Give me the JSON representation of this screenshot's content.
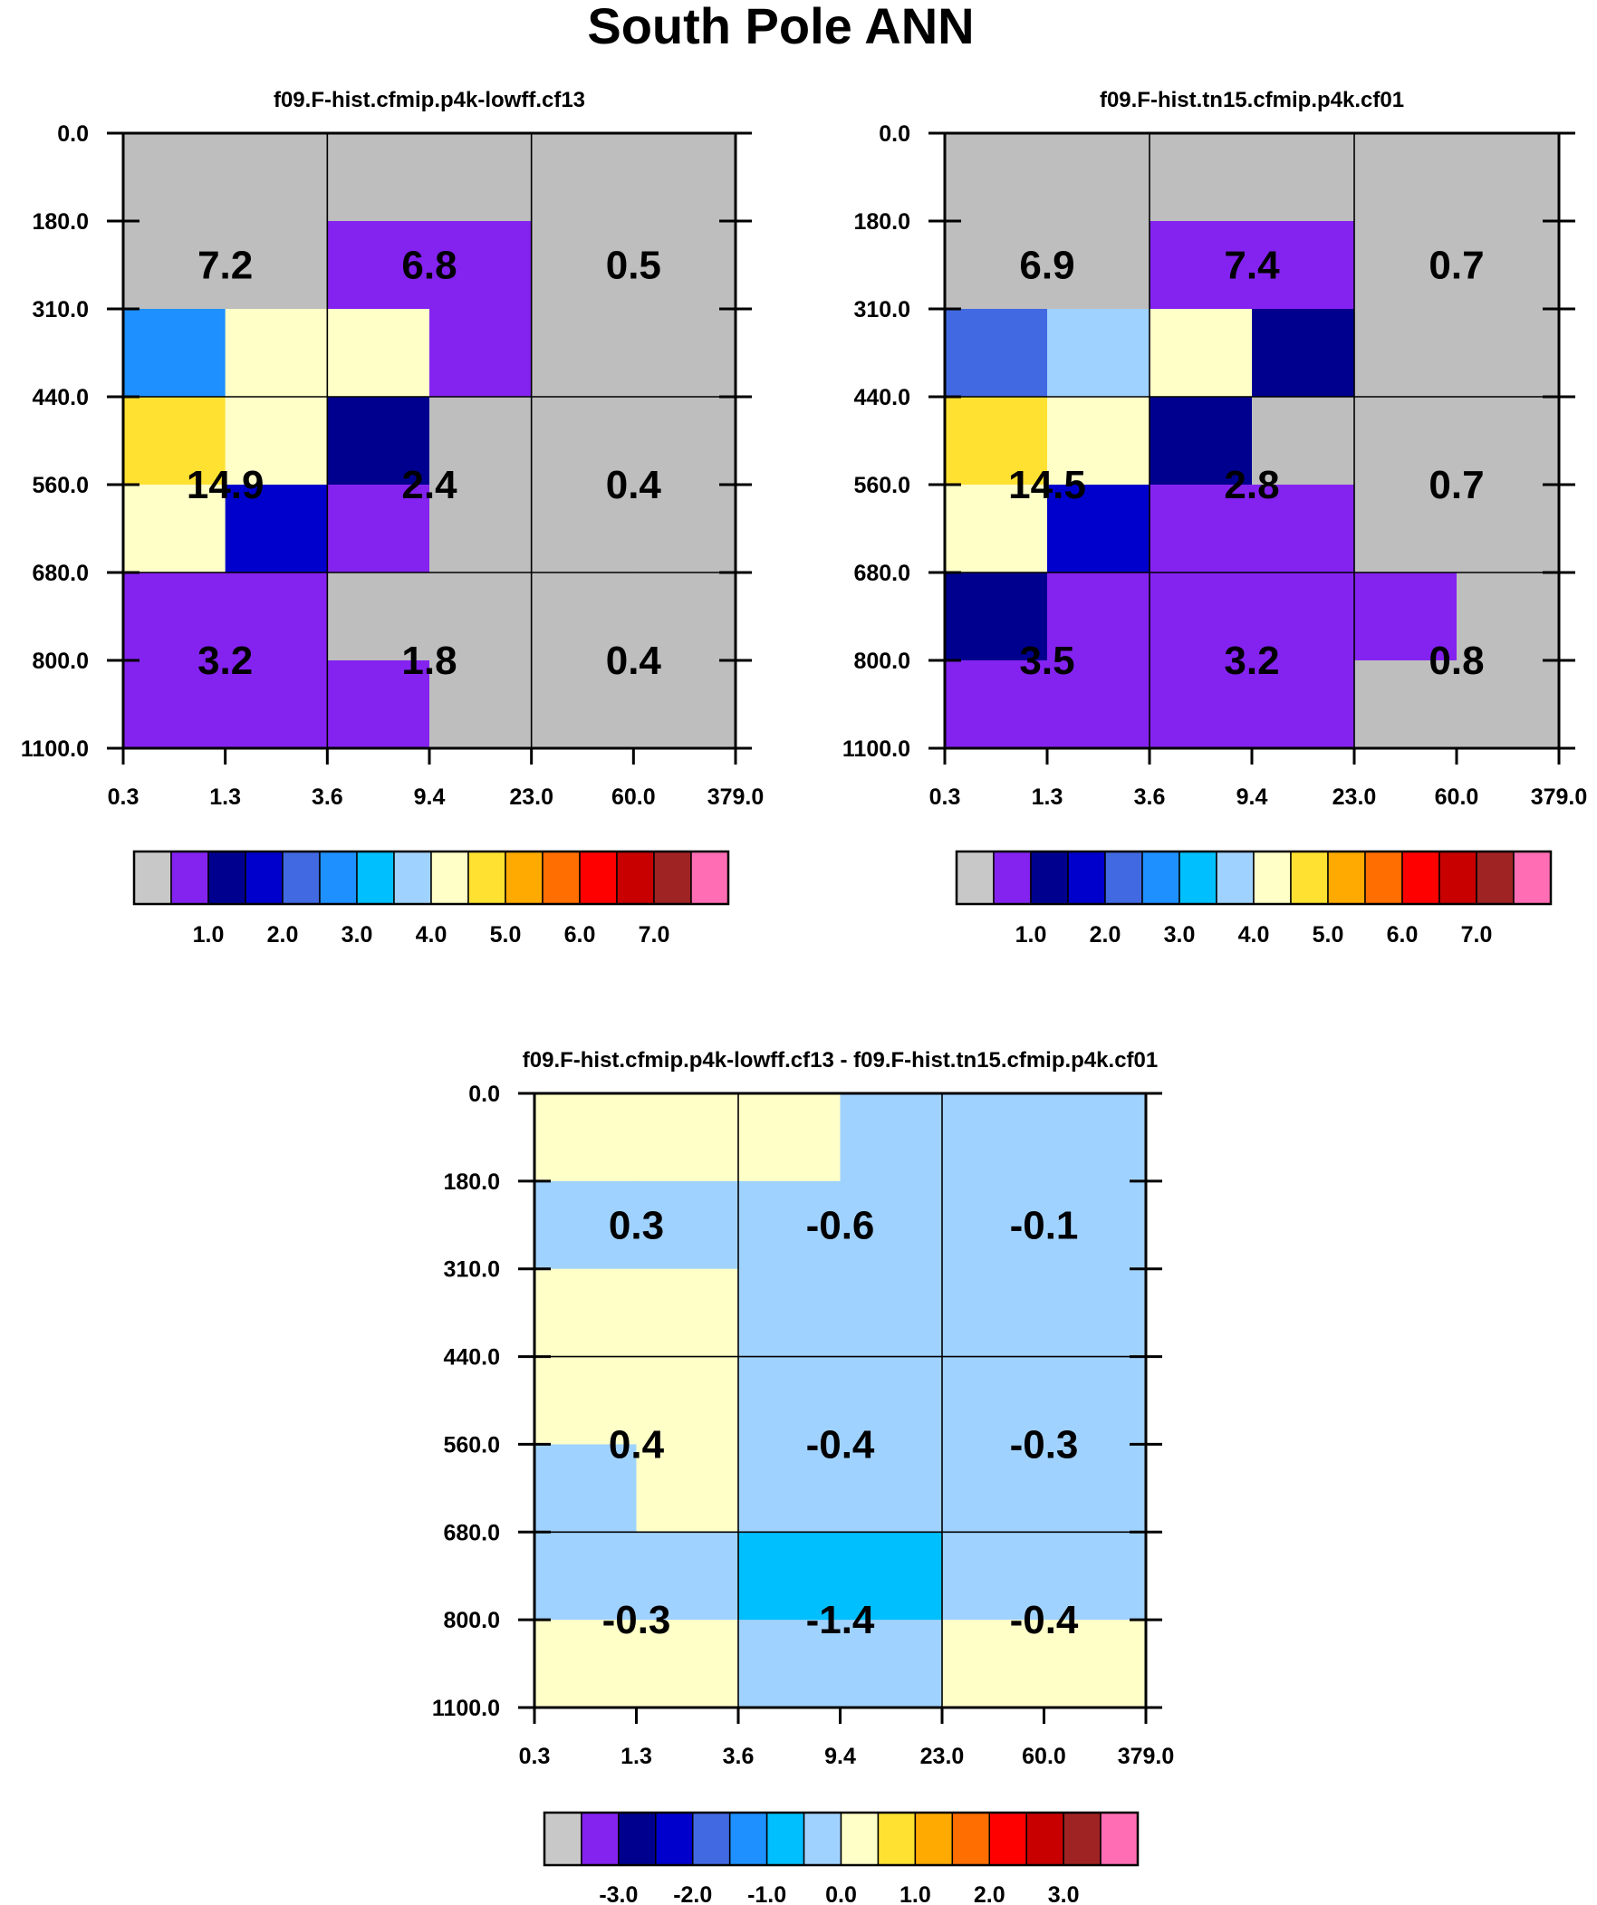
{
  "title": "South Pole ANN",
  "chart_data": [
    {
      "type": "heatmap",
      "title": "f09.F-hist.cfmip.p4k-lowff.cf13",
      "x_ticks": [
        "0.3",
        "1.3",
        "3.6",
        "9.4",
        "23.0",
        "60.0",
        "379.0"
      ],
      "y_ticks": [
        "0.0",
        "180.0",
        "310.0",
        "440.0",
        "560.0",
        "680.0",
        "800.0",
        "1100.0"
      ],
      "cells": [
        [
          "gray",
          "gray",
          "gray",
          "gray",
          "gray",
          "gray"
        ],
        [
          "gray",
          "gray",
          "purple",
          "purple",
          "gray",
          "gray"
        ],
        [
          "dodgerblue",
          "lightyellow",
          "lightyellow",
          "purple",
          "gray",
          "gray"
        ],
        [
          "gold",
          "lightyellow",
          "navy",
          "gray",
          "gray",
          "gray"
        ],
        [
          "lightyellow",
          "mediumblue",
          "purple",
          "gray",
          "gray",
          "gray"
        ],
        [
          "purple",
          "purple",
          "gray",
          "gray",
          "gray",
          "gray"
        ],
        [
          "purple",
          "purple",
          "purple",
          "gray",
          "gray",
          "gray"
        ]
      ],
      "box_values": [
        [
          "7.2",
          "6.8",
          "0.5"
        ],
        [
          "14.9",
          "2.4",
          "0.4"
        ],
        [
          "3.2",
          "1.8",
          "0.4"
        ]
      ],
      "colorbar": {
        "colors": [
          "#c8c8c8",
          "#8423f0",
          "#00008f",
          "#0000cd",
          "#4169e1",
          "#1e90ff",
          "#00bfff",
          "#a0d2ff",
          "#ffffc8",
          "#ffe132",
          "#ffaa00",
          "#ff6e00",
          "#ff0000",
          "#c80000",
          "#a02323",
          "#ff6eb4"
        ],
        "labels": [
          "1.0",
          "2.0",
          "3.0",
          "4.0",
          "5.0",
          "6.0",
          "7.0"
        ]
      }
    },
    {
      "type": "heatmap",
      "title": "f09.F-hist.tn15.cfmip.p4k.cf01",
      "x_ticks": [
        "0.3",
        "1.3",
        "3.6",
        "9.4",
        "23.0",
        "60.0",
        "379.0"
      ],
      "y_ticks": [
        "0.0",
        "180.0",
        "310.0",
        "440.0",
        "560.0",
        "680.0",
        "800.0",
        "1100.0"
      ],
      "cells": [
        [
          "gray",
          "gray",
          "gray",
          "gray",
          "gray",
          "gray"
        ],
        [
          "gray",
          "gray",
          "purple",
          "purple",
          "gray",
          "gray"
        ],
        [
          "royalblue",
          "lightblue",
          "lightyellow",
          "navy",
          "gray",
          "gray"
        ],
        [
          "gold",
          "lightyellow",
          "navy",
          "gray",
          "gray",
          "gray"
        ],
        [
          "lightyellow",
          "mediumblue",
          "purple",
          "purple",
          "gray",
          "gray"
        ],
        [
          "navy",
          "purple",
          "purple",
          "purple",
          "purple",
          "gray"
        ],
        [
          "purple",
          "purple",
          "purple",
          "purple",
          "gray",
          "gray"
        ]
      ],
      "box_values": [
        [
          "6.9",
          "7.4",
          "0.7"
        ],
        [
          "14.5",
          "2.8",
          "0.7"
        ],
        [
          "3.5",
          "3.2",
          "0.8"
        ]
      ],
      "colorbar": {
        "colors": [
          "#c8c8c8",
          "#8423f0",
          "#00008f",
          "#0000cd",
          "#4169e1",
          "#1e90ff",
          "#00bfff",
          "#a0d2ff",
          "#ffffc8",
          "#ffe132",
          "#ffaa00",
          "#ff6e00",
          "#ff0000",
          "#c80000",
          "#a02323",
          "#ff6eb4"
        ],
        "labels": [
          "1.0",
          "2.0",
          "3.0",
          "4.0",
          "5.0",
          "6.0",
          "7.0"
        ]
      }
    },
    {
      "type": "heatmap",
      "title": "f09.F-hist.cfmip.p4k-lowff.cf13 - f09.F-hist.tn15.cfmip.p4k.cf01",
      "x_ticks": [
        "0.3",
        "1.3",
        "3.6",
        "9.4",
        "23.0",
        "60.0",
        "379.0"
      ],
      "y_ticks": [
        "0.0",
        "180.0",
        "310.0",
        "440.0",
        "560.0",
        "680.0",
        "800.0",
        "1100.0"
      ],
      "cells": [
        [
          "lightyellow",
          "lightyellow",
          "lightyellow",
          "lightblue",
          "lightblue",
          "lightblue"
        ],
        [
          "lightblue",
          "lightblue",
          "lightblue",
          "lightblue",
          "lightblue",
          "lightblue"
        ],
        [
          "lightyellow",
          "lightyellow",
          "lightblue",
          "lightblue",
          "lightblue",
          "lightblue"
        ],
        [
          "lightyellow",
          "lightyellow",
          "lightblue",
          "lightblue",
          "lightblue",
          "lightblue"
        ],
        [
          "lightblue",
          "lightyellow",
          "lightblue",
          "lightblue",
          "lightblue",
          "lightblue"
        ],
        [
          "lightblue",
          "lightblue",
          "deepskyblue",
          "deepskyblue",
          "lightblue",
          "lightblue"
        ],
        [
          "lightyellow",
          "lightyellow",
          "lightblue",
          "lightblue",
          "lightyellow",
          "lightyellow"
        ]
      ],
      "box_values": [
        [
          "0.3",
          "-0.6",
          "-0.1"
        ],
        [
          "0.4",
          "-0.4",
          "-0.3"
        ],
        [
          "-0.3",
          "-1.4",
          "-0.4"
        ]
      ],
      "colorbar": {
        "colors": [
          "#c8c8c8",
          "#8423f0",
          "#00008f",
          "#0000cd",
          "#4169e1",
          "#1e90ff",
          "#00bfff",
          "#a0d2ff",
          "#ffffc8",
          "#ffe132",
          "#ffaa00",
          "#ff6e00",
          "#ff0000",
          "#c80000",
          "#a02323",
          "#ff6eb4"
        ],
        "labels": [
          "-3.0",
          "-2.0",
          "-1.0",
          "0.0",
          "1.0",
          "2.0",
          "3.0"
        ]
      }
    }
  ],
  "palette": {
    "gray": "#bebebe",
    "purple": "#8423f0",
    "navy": "#00008f",
    "mediumblue": "#0000cd",
    "royalblue": "#4169e1",
    "dodgerblue": "#1e90ff",
    "deepskyblue": "#00bfff",
    "lightblue": "#a0d2ff",
    "lightyellow": "#ffffc8",
    "gold": "#ffe132"
  }
}
